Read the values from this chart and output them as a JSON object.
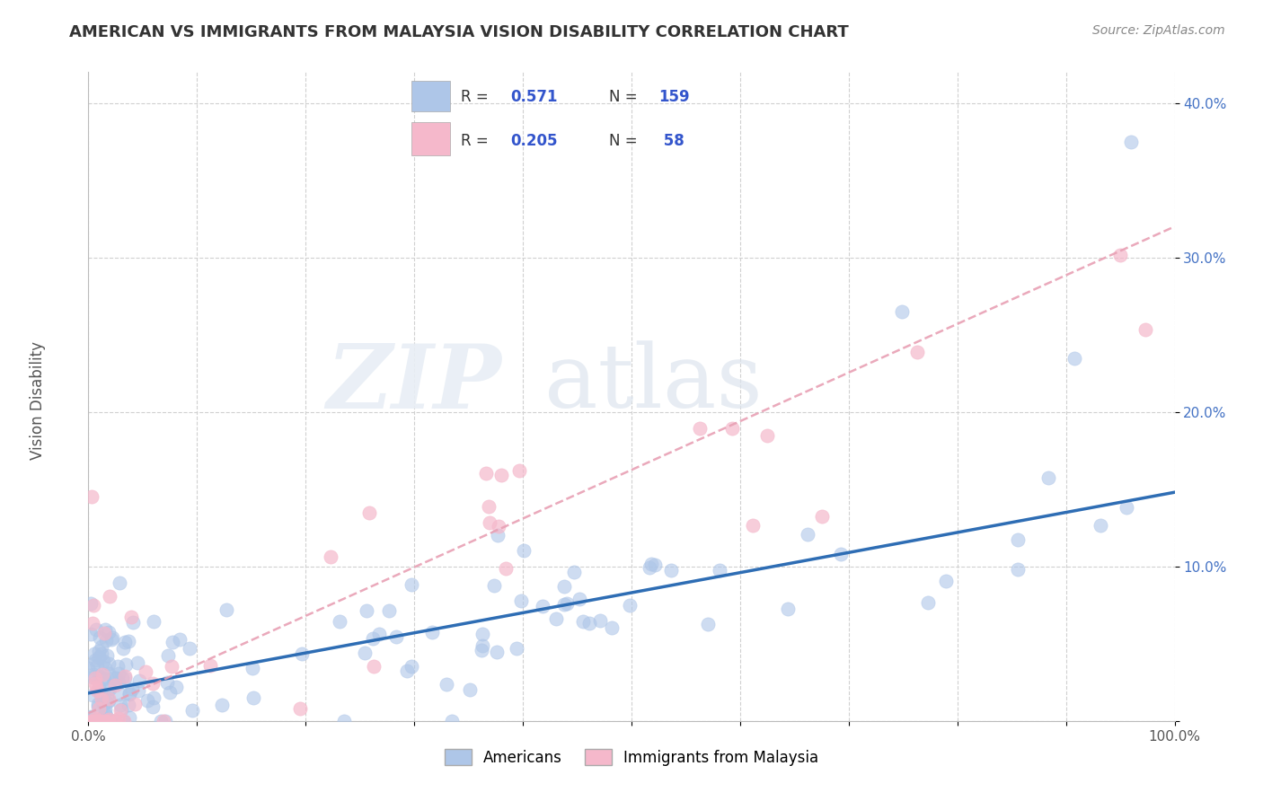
{
  "title": "AMERICAN VS IMMIGRANTS FROM MALAYSIA VISION DISABILITY CORRELATION CHART",
  "source": "Source: ZipAtlas.com",
  "ylabel": "Vision Disability",
  "xlim": [
    0,
    1.0
  ],
  "ylim": [
    0,
    0.42
  ],
  "x_ticks": [
    0.0,
    0.1,
    0.2,
    0.3,
    0.4,
    0.5,
    0.6,
    0.7,
    0.8,
    0.9,
    1.0
  ],
  "x_tick_labels": [
    "0.0%",
    "",
    "",
    "",
    "",
    "",
    "",
    "",
    "",
    "",
    "100.0%"
  ],
  "y_ticks": [
    0.0,
    0.1,
    0.2,
    0.3,
    0.4
  ],
  "y_tick_labels_right": [
    "",
    "10.0%",
    "20.0%",
    "30.0%",
    "40.0%"
  ],
  "r_american": 0.571,
  "n_american": 159,
  "r_malaysia": 0.205,
  "n_malaysia": 58,
  "american_color": "#aec6e8",
  "malaysia_color": "#f5b8cb",
  "american_line_color": "#2e6db4",
  "malaysia_line_color": "#e8a0b4",
  "background_color": "#ffffff",
  "grid_color": "#d0d0d0",
  "legend_box_color": "#f8f8f8",
  "stat_color": "#3355cc",
  "title_color": "#333333",
  "source_color": "#888888",
  "am_line_start_y": 0.018,
  "am_line_end_y": 0.148,
  "mal_line_start_y": 0.005,
  "mal_line_end_y": 0.32
}
